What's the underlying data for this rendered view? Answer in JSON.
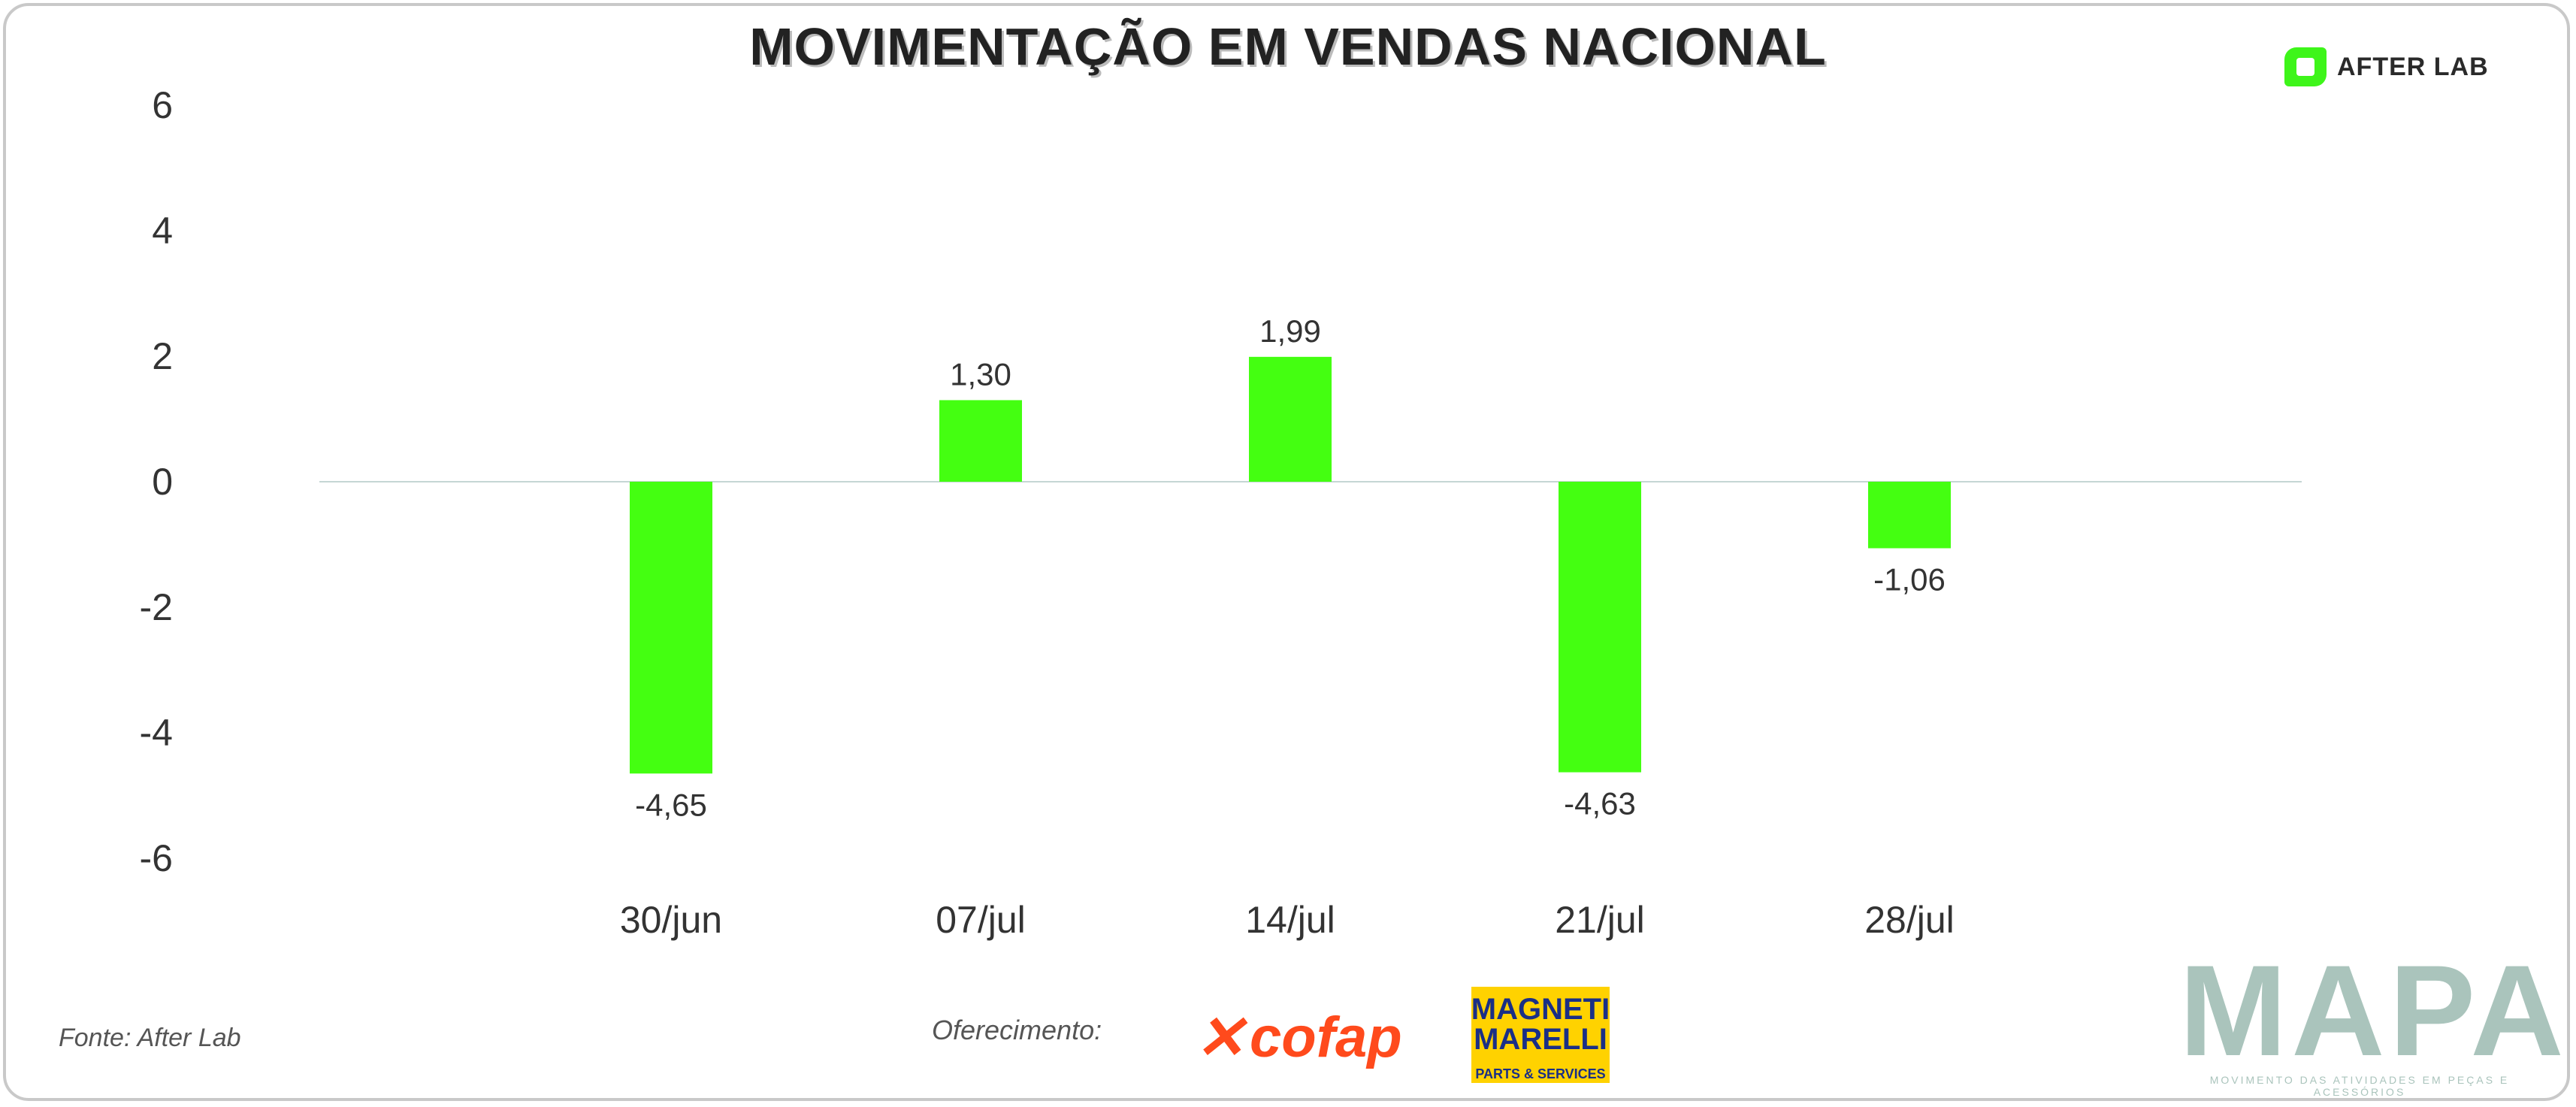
{
  "chart_data": {
    "type": "bar",
    "title": "MOVIMENTAÇÃO EM VENDAS NACIONAL",
    "categories": [
      "30/jun",
      "07/jul",
      "14/jul",
      "21/jul",
      "28/jul"
    ],
    "values": [
      -4.65,
      1.3,
      1.99,
      -4.63,
      -1.06
    ],
    "value_labels": [
      "-4,65",
      "1,30",
      "1,99",
      "-4,63",
      "-1,06"
    ],
    "ylim": [
      -6,
      6
    ],
    "y_ticks": [
      6,
      4,
      2,
      0,
      -2,
      -4,
      -6
    ],
    "bar_color": "#44ff11",
    "grid": false,
    "legend": "none"
  },
  "brand": {
    "name": "AFTER LAB",
    "color": "#3ef51a"
  },
  "footer": {
    "source": "Fonte: After Lab",
    "sponsor_label": "Oferecimento:",
    "sponsor_1": "cofap",
    "sponsor_2_name": "MAGNETI MARELLI",
    "sponsor_2_sub": "PARTS & SERVICES",
    "mapa_word": "MAPA",
    "mapa_sub": "MOVIMENTO DAS ATIVIDADES EM PEÇAS E ACESSÓRIOS"
  }
}
